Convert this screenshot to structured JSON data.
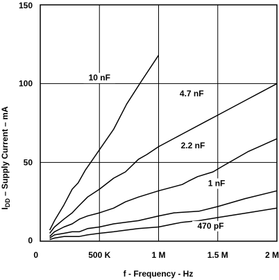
{
  "chart_data": {
    "type": "line",
    "title": "",
    "xlabel": "f - Frequency - Hz",
    "ylabel_parts": [
      "I",
      "DD",
      " – Supply Current – mA"
    ],
    "xlim": [
      0,
      2000000
    ],
    "ylim": [
      0,
      150
    ],
    "x_ticks": [
      {
        "value": 0,
        "label": "0"
      },
      {
        "value": 500000,
        "label": "500 K"
      },
      {
        "value": 1000000,
        "label": "1 M"
      },
      {
        "value": 1500000,
        "label": "1.5 M"
      },
      {
        "value": 2000000,
        "label": "2 M"
      }
    ],
    "y_ticks": [
      {
        "value": 0,
        "label": "0"
      },
      {
        "value": 50,
        "label": "50"
      },
      {
        "value": 100,
        "label": "100"
      },
      {
        "value": 150,
        "label": "150"
      }
    ],
    "grid": true,
    "series": [
      {
        "name": "10 nF",
        "label_at": [
          500000,
          102
        ],
        "points": [
          [
            80000,
            7
          ],
          [
            120000,
            13
          ],
          [
            200000,
            23
          ],
          [
            270000,
            33
          ],
          [
            320000,
            37
          ],
          [
            380000,
            45
          ],
          [
            500000,
            58
          ],
          [
            620000,
            71
          ],
          [
            730000,
            87
          ],
          [
            850000,
            101
          ],
          [
            1000000,
            118
          ]
        ]
      },
      {
        "name": "4.7 nF",
        "label_at": [
          1280000,
          92
        ],
        "points": [
          [
            80000,
            5
          ],
          [
            120000,
            9
          ],
          [
            200000,
            14
          ],
          [
            270000,
            18
          ],
          [
            320000,
            22
          ],
          [
            400000,
            28
          ],
          [
            500000,
            33
          ],
          [
            620000,
            40
          ],
          [
            720000,
            44
          ],
          [
            830000,
            52
          ],
          [
            900000,
            55
          ],
          [
            1000000,
            60
          ],
          [
            1200000,
            68
          ],
          [
            1400000,
            76
          ],
          [
            1500000,
            80
          ],
          [
            1750000,
            90
          ],
          [
            2000000,
            100
          ]
        ]
      },
      {
        "name": "2.2 nF",
        "label_at": [
          1290000,
          59
        ],
        "points": [
          [
            80000,
            3
          ],
          [
            120000,
            6
          ],
          [
            200000,
            9
          ],
          [
            270000,
            11
          ],
          [
            330000,
            14
          ],
          [
            400000,
            16
          ],
          [
            500000,
            18
          ],
          [
            620000,
            21
          ],
          [
            720000,
            25
          ],
          [
            830000,
            28
          ],
          [
            1000000,
            32
          ],
          [
            1200000,
            36
          ],
          [
            1250000,
            38
          ],
          [
            1330000,
            41
          ],
          [
            1460000,
            44
          ],
          [
            1550000,
            48
          ],
          [
            1760000,
            57
          ],
          [
            2000000,
            65
          ]
        ]
      },
      {
        "name": "1 nF",
        "label_at": [
          1490000,
          35
        ],
        "points": [
          [
            80000,
            2
          ],
          [
            120000,
            4
          ],
          [
            200000,
            5
          ],
          [
            270000,
            6
          ],
          [
            330000,
            6
          ],
          [
            400000,
            8
          ],
          [
            500000,
            9
          ],
          [
            620000,
            11
          ],
          [
            720000,
            12
          ],
          [
            830000,
            13
          ],
          [
            1000000,
            16
          ],
          [
            1130000,
            18
          ],
          [
            1340000,
            19
          ],
          [
            1500000,
            22
          ],
          [
            1730000,
            27
          ],
          [
            2000000,
            32
          ]
        ]
      },
      {
        "name": "470 pF",
        "label_at": [
          1440000,
          8
        ],
        "points": [
          [
            80000,
            1
          ],
          [
            120000,
            2
          ],
          [
            200000,
            3
          ],
          [
            270000,
            3
          ],
          [
            330000,
            3
          ],
          [
            400000,
            4
          ],
          [
            500000,
            5
          ],
          [
            620000,
            6
          ],
          [
            720000,
            7
          ],
          [
            830000,
            8
          ],
          [
            1000000,
            9
          ],
          [
            1130000,
            11
          ],
          [
            1200000,
            12
          ],
          [
            1340000,
            13
          ],
          [
            1500000,
            15
          ],
          [
            1750000,
            18
          ],
          [
            2000000,
            21
          ]
        ]
      }
    ]
  }
}
